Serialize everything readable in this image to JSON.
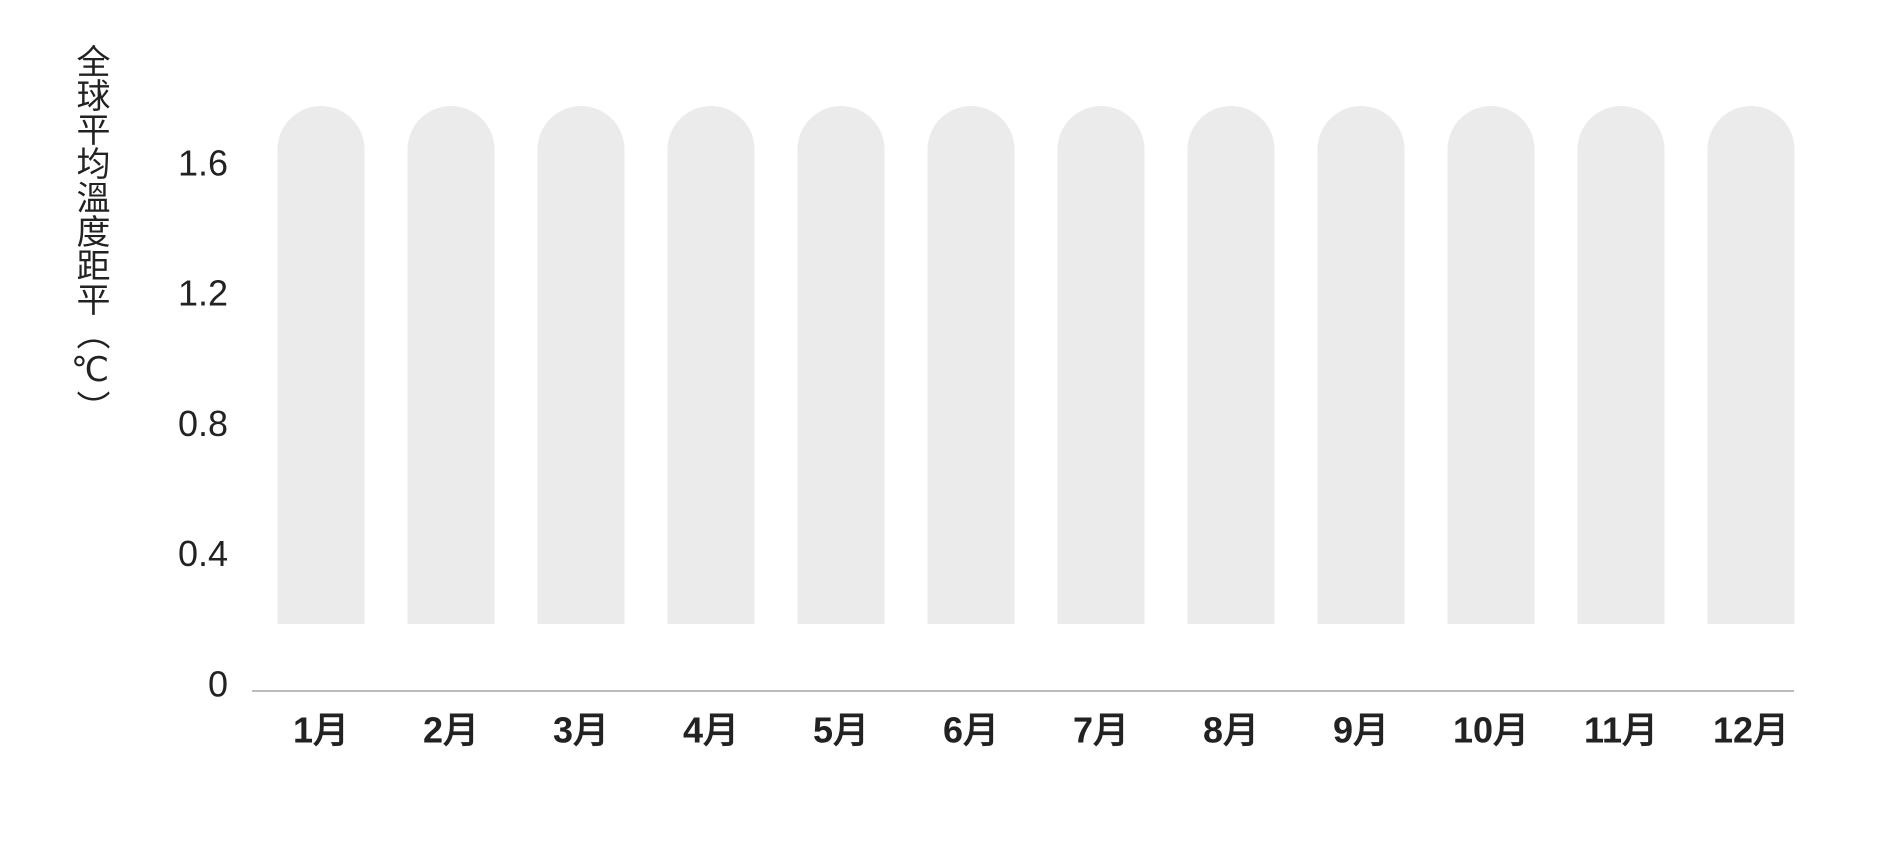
{
  "chart_data": {
    "type": "bar",
    "categories": [
      "1月",
      "2月",
      "3月",
      "4月",
      "5月",
      "6月",
      "7月",
      "8月",
      "9月",
      "10月",
      "11月",
      "12月"
    ],
    "ylabel": "全球平均溫度距平（℃）",
    "yticks": [
      0,
      0.4,
      0.8,
      1.2,
      1.6
    ],
    "yticklabels": [
      "0",
      "0.4",
      "0.8",
      "1.2",
      "1.6"
    ],
    "ylim": [
      0,
      1.6
    ],
    "grid": false,
    "colors": {
      "bar_track": "#ebebeb",
      "axis": "#a6a6a6",
      "text": "#222222"
    }
  }
}
